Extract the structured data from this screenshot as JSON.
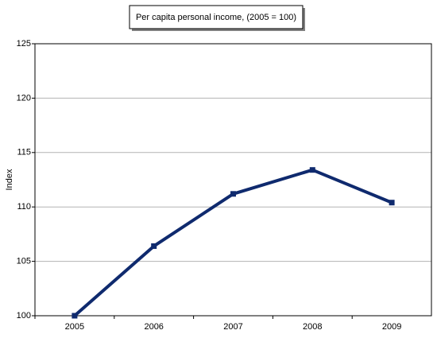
{
  "chart_data": {
    "type": "line",
    "title": "Per capita personal income, (2005 = 100)",
    "y_label": "Index",
    "categories": [
      "2005",
      "2006",
      "2007",
      "2008",
      "2009"
    ],
    "values": [
      100,
      106.4,
      111.2,
      113.4,
      110.4
    ],
    "color": "#0f2a6e",
    "ylim": [
      100,
      125
    ],
    "yticks": [
      100,
      105,
      110,
      115,
      120,
      125
    ],
    "grid": true
  }
}
